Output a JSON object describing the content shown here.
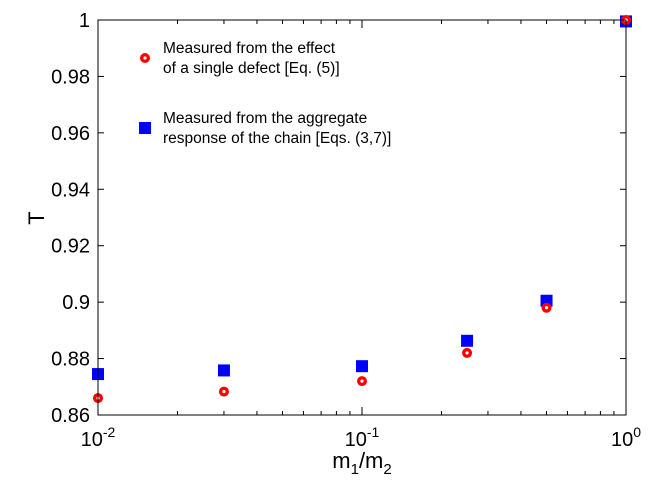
{
  "chart_data": {
    "type": "scatter",
    "xscale": "log",
    "xlim": [
      0.01,
      1
    ],
    "ylim": [
      0.86,
      1
    ],
    "xlabel": {
      "base": "m",
      "sub1": "1",
      "mid": "/m",
      "sub2": "2"
    },
    "ylabel": "T",
    "grid": false,
    "legend_position": "top-left",
    "x_ticks": [
      {
        "value": 0.01,
        "base": "10",
        "exp": "-2"
      },
      {
        "value": 0.1,
        "base": "10",
        "exp": "-1"
      },
      {
        "value": 1,
        "base": "10",
        "exp": "0"
      }
    ],
    "y_ticks": [
      {
        "value": 0.86,
        "label": "0.86"
      },
      {
        "value": 0.88,
        "label": "0.88"
      },
      {
        "value": 0.9,
        "label": "0.9"
      },
      {
        "value": 0.92,
        "label": "0.92"
      },
      {
        "value": 0.94,
        "label": "0.94"
      },
      {
        "value": 0.96,
        "label": "0.96"
      },
      {
        "value": 0.98,
        "label": "0.98"
      },
      {
        "value": 1,
        "label": "1"
      }
    ],
    "series": [
      {
        "name": [
          "Measured from the effect",
          "of a single defect [Eq. (5)]"
        ],
        "marker": "circle",
        "color": "#ff0000",
        "x": [
          0.01,
          0.03,
          0.1,
          0.25,
          0.5,
          1
        ],
        "y": [
          0.866,
          0.8683,
          0.872,
          0.882,
          0.898,
          1.0
        ]
      },
      {
        "name": [
          "Measured from the aggregate",
          "response of the chain [Eqs. (3,7)]"
        ],
        "marker": "square",
        "color": "#0000ff",
        "x": [
          0.01,
          0.03,
          0.1,
          0.25,
          0.5,
          1
        ],
        "y": [
          0.8745,
          0.8758,
          0.8773,
          0.8863,
          0.9005,
          0.9995
        ]
      }
    ]
  }
}
